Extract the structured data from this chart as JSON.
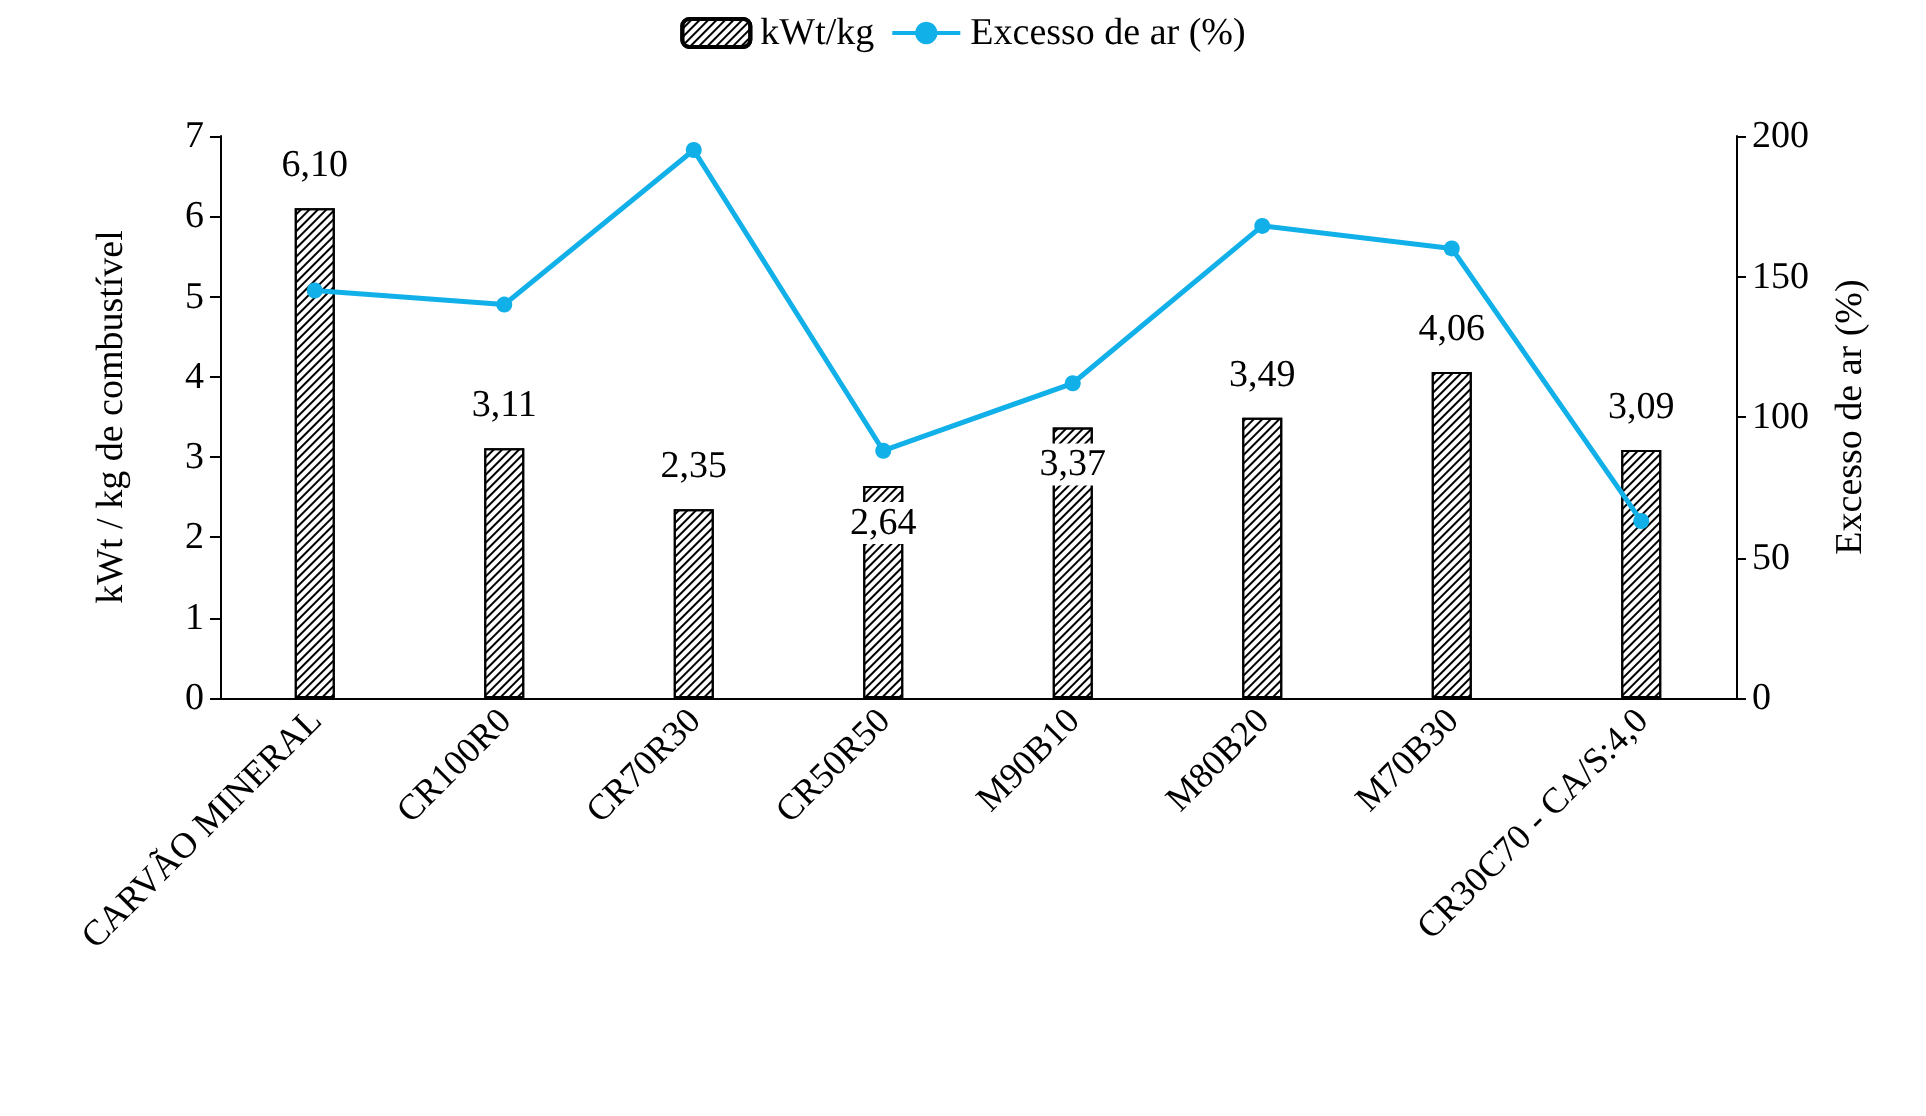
{
  "chart_data": {
    "type": "bar",
    "categories": [
      "CARVÃO MINERAL",
      "CR100R0",
      "CR70R30",
      "CR50R50",
      "M90B10",
      "M80B20",
      "M70B30",
      "CR30C70 - CA/S:4,0"
    ],
    "ylabel": "kWt / kg de combustível",
    "y2label": "Excesso de ar (%)",
    "ylim": [
      0,
      7
    ],
    "yticks": [
      0,
      1,
      2,
      3,
      4,
      5,
      6,
      7
    ],
    "y2lim": [
      0,
      200
    ],
    "y2ticks": [
      0,
      50,
      100,
      150,
      200
    ],
    "series": [
      {
        "name": "kWt/kg",
        "color": "#000000",
        "values": [
          6.1,
          3.11,
          2.35,
          2.64,
          3.37,
          3.49,
          4.06,
          3.09
        ],
        "value_labels": [
          "6,10",
          "3,11",
          "2,35",
          "2,64",
          "3,37",
          "3,49",
          "4,06",
          "3,09"
        ]
      },
      {
        "name": "Excesso de ar (%)",
        "type": "line",
        "axis": "y2",
        "color": "#12b0e8",
        "marker": "circle",
        "values": [
          145,
          140,
          195,
          88,
          112,
          168,
          160,
          63
        ]
      }
    ],
    "legend": "top",
    "grid": false
  }
}
